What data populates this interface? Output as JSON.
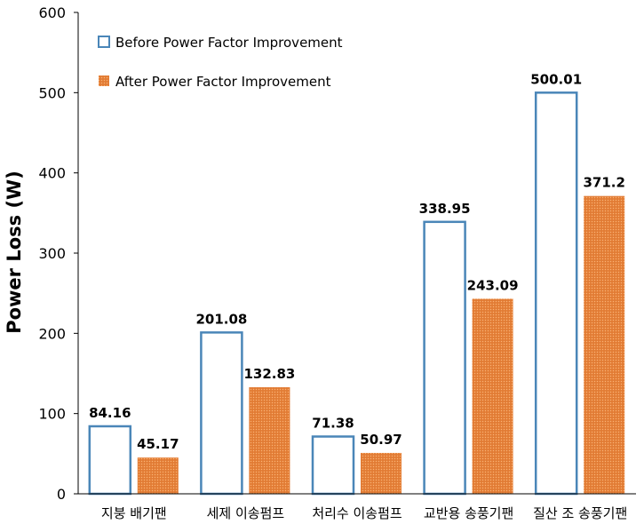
{
  "chart_data": {
    "type": "bar",
    "title": "",
    "xlabel": "",
    "ylabel": "Power Loss (W)",
    "ylim": [
      0,
      600
    ],
    "yticks": [
      0,
      100,
      200,
      300,
      400,
      500,
      600
    ],
    "categories": [
      "지붕 배기팬",
      "세제 이송펌프",
      "처리수 이송펌프",
      "교반용 송풍기팬",
      "질산 조 송풍기팬"
    ],
    "series": [
      {
        "name": "Before Power Factor Improvement",
        "values": [
          84.16,
          201.08,
          71.38,
          338.95,
          500.01
        ],
        "labels": [
          "84.16",
          "201.08",
          "71.38",
          "338.95",
          "500.01"
        ],
        "style": "outline",
        "color": "#4a86b8"
      },
      {
        "name": "After Power Factor Improvement",
        "values": [
          45.17,
          132.83,
          50.97,
          243.09,
          371.2
        ],
        "labels": [
          "45.17",
          "132.83",
          "50.97",
          "243.09",
          "371.2"
        ],
        "style": "dotted-fill",
        "color": "#e8833a"
      }
    ],
    "legend": "top-left",
    "grid": false
  }
}
